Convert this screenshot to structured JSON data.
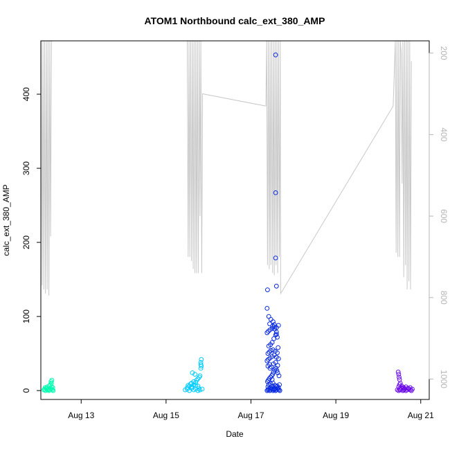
{
  "chart_data": {
    "type": "scatter",
    "title": "ATOM1 Northbound calc_ext_380_AMP",
    "xlabel": "Date",
    "ylabel": "calc_ext_380_AMP",
    "x_ticks": [
      "Aug 13",
      "Aug 15",
      "Aug 17",
      "Aug 19",
      "Aug 21"
    ],
    "x_tick_days": [
      13,
      15,
      17,
      19,
      21
    ],
    "xlim": [
      12.05,
      21.2
    ],
    "ylim": [
      -12,
      472
    ],
    "y_ticks": [
      0,
      100,
      200,
      300,
      400
    ],
    "y2_ticks": [
      200,
      400,
      600,
      800,
      1000
    ],
    "y2_lim": [
      1050,
      170
    ],
    "y2_reversed": true,
    "grid": false,
    "legend": "none",
    "series": [
      {
        "color": "#00FFB0",
        "x": [
          12.12,
          12.14,
          12.16,
          12.18,
          12.2,
          12.22,
          12.24,
          12.26,
          12.28,
          12.3,
          12.32,
          12.34,
          12.15,
          12.2,
          12.25,
          12.28,
          12.31,
          12.33,
          12.27,
          12.3,
          12.31,
          12.29,
          12.23,
          12.19
        ],
        "y": [
          1,
          2,
          0,
          3,
          1,
          2,
          0,
          1,
          3,
          2,
          1,
          0,
          4,
          5,
          6,
          3,
          5,
          4,
          8,
          10,
          14,
          12,
          2,
          3
        ]
      },
      {
        "color": "#00CCFF",
        "x": [
          15.45,
          15.5,
          15.55,
          15.6,
          15.65,
          15.7,
          15.75,
          15.8,
          15.85,
          15.5,
          15.55,
          15.6,
          15.65,
          15.7,
          15.75,
          15.6,
          15.65,
          15.7,
          15.72,
          15.75,
          15.78,
          15.8,
          15.82,
          15.82,
          15.83,
          15.83,
          15.82,
          15.68,
          15.58,
          15.52,
          15.62,
          15.77
        ],
        "y": [
          1,
          2,
          0,
          3,
          1,
          2,
          0,
          1,
          2,
          4,
          6,
          5,
          8,
          7,
          6,
          10,
          12,
          11,
          14,
          16,
          18,
          20,
          35,
          38,
          42,
          33,
          30,
          22,
          9,
          7,
          24,
          3
        ]
      },
      {
        "color": "#0A2BE0",
        "x": [
          17.38,
          17.4,
          17.42,
          17.44,
          17.46,
          17.48,
          17.5,
          17.52,
          17.54,
          17.56,
          17.58,
          17.6,
          17.62,
          17.64,
          17.66,
          17.68,
          17.4,
          17.45,
          17.5,
          17.55,
          17.6,
          17.65,
          17.42,
          17.47,
          17.52,
          17.57,
          17.62,
          17.67,
          17.39,
          17.41,
          17.43,
          17.46,
          17.49,
          17.51,
          17.53,
          17.56,
          17.59,
          17.61,
          17.63,
          17.66,
          17.4,
          17.44,
          17.48,
          17.53,
          17.58,
          17.63,
          17.38,
          17.41,
          17.45,
          17.5,
          17.55,
          17.6,
          17.65,
          17.4,
          17.43,
          17.47,
          17.52,
          17.57,
          17.62,
          17.42,
          17.46,
          17.5,
          17.54,
          17.58,
          17.62,
          17.38,
          17.41,
          17.45,
          17.5,
          17.55,
          17.6,
          17.65,
          17.44,
          17.51,
          17.56,
          17.6,
          17.58,
          17.58,
          17.58,
          17.6,
          17.39,
          17.38,
          17.42,
          17.47,
          17.52,
          17.55,
          17.6,
          17.64,
          17.45,
          17.5
        ],
        "y": [
          0,
          1,
          2,
          0,
          1,
          3,
          2,
          0,
          1,
          2,
          0,
          1,
          3,
          2,
          1,
          0,
          5,
          4,
          6,
          3,
          5,
          4,
          8,
          9,
          10,
          7,
          6,
          8,
          12,
          14,
          16,
          18,
          20,
          22,
          25,
          28,
          30,
          27,
          24,
          20,
          33,
          35,
          32,
          36,
          38,
          34,
          40,
          42,
          44,
          46,
          48,
          45,
          43,
          50,
          52,
          54,
          55,
          53,
          51,
          60,
          62,
          65,
          70,
          75,
          72,
          78,
          80,
          82,
          84,
          86,
          85,
          88,
          90,
          87,
          83,
          79,
          453,
          267,
          179,
          141,
          136,
          111,
          100,
          96,
          93,
          89,
          76,
          58,
          30,
          15
        ]
      },
      {
        "color": "#6A0AE8",
        "x": [
          20.45,
          20.48,
          20.5,
          20.52,
          20.55,
          20.58,
          20.6,
          20.62,
          20.65,
          20.68,
          20.7,
          20.72,
          20.75,
          20.78,
          20.8,
          20.48,
          20.5,
          20.52,
          20.55,
          20.58,
          20.5,
          20.49,
          20.48,
          20.47,
          20.6,
          20.65,
          20.7,
          20.75
        ],
        "y": [
          1,
          0,
          2,
          1,
          3,
          0,
          1,
          2,
          0,
          1,
          3,
          2,
          1,
          0,
          2,
          5,
          8,
          10,
          6,
          4,
          15,
          18,
          22,
          25,
          4,
          5,
          3,
          4
        ]
      }
    ],
    "secondary_trace": {
      "color": "#c8c8c8",
      "x": [
        12.06,
        12.08,
        12.1,
        12.12,
        12.14,
        12.16,
        12.18,
        12.2,
        12.22,
        12.24,
        12.26,
        12.28,
        12.3,
        12.32,
        15.5,
        15.52,
        15.54,
        15.56,
        15.58,
        15.6,
        15.62,
        15.64,
        15.66,
        15.68,
        15.7,
        15.72,
        15.74,
        15.76,
        15.78,
        15.8,
        15.82,
        15.84,
        15.86,
        17.35,
        17.37,
        17.39,
        17.41,
        17.43,
        17.45,
        17.47,
        17.49,
        17.51,
        17.53,
        17.55,
        17.57,
        17.59,
        17.61,
        17.63,
        17.65,
        17.67,
        17.69,
        17.7,
        20.35,
        20.4,
        20.42,
        20.44,
        20.46,
        20.48,
        20.5,
        20.52,
        20.54,
        20.56,
        20.58,
        20.6,
        20.62,
        20.64,
        20.66,
        20.68,
        20.7,
        20.72,
        20.74,
        20.76,
        20.78
      ],
      "y": [
        170,
        770,
        170,
        780,
        170,
        790,
        170,
        780,
        170,
        795,
        170,
        650,
        170,
        170,
        170,
        700,
        170,
        700,
        170,
        710,
        170,
        730,
        170,
        740,
        170,
        740,
        170,
        740,
        170,
        600,
        170,
        740,
        300,
        330,
        170,
        720,
        170,
        730,
        170,
        720,
        170,
        740,
        170,
        745,
        170,
        720,
        170,
        740,
        170,
        700,
        170,
        790,
        330,
        170,
        690,
        170,
        700,
        170,
        700,
        170,
        200,
        520,
        170,
        750,
        170,
        720,
        170,
        780,
        170,
        760,
        170,
        780,
        220
      ]
    }
  }
}
